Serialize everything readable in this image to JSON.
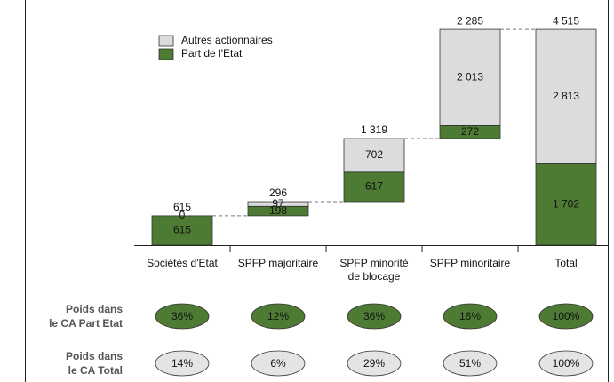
{
  "chart_data": {
    "type": "waterfall",
    "categories": [
      "Sociétés d'Etat",
      "SPFP majoritaire",
      "SPFP minorité\nde blocage",
      "SPFP minoritaire",
      "Total"
    ],
    "series": [
      {
        "name": "Autres actionnaires",
        "color": "#dcdcdc",
        "values": [
          0,
          97,
          702,
          2013,
          2813
        ],
        "value_labels": [
          "0",
          "97",
          "702",
          "2 013",
          "2 813"
        ]
      },
      {
        "name": "Part de l'Etat",
        "color": "#4e7b34",
        "values": [
          615,
          198,
          617,
          272,
          1702
        ],
        "value_labels": [
          "615",
          "198",
          "617",
          "272",
          "1 702"
        ]
      }
    ],
    "totals": [
      615,
      296,
      1319,
      2285,
      4515
    ],
    "total_labels": [
      "615",
      "296",
      "1 319",
      "2 285",
      "4 515"
    ],
    "ylim": [
      0,
      5000
    ],
    "rows": [
      {
        "label": "Poids dans\nle CA Part Etat",
        "color": "#4e7b34",
        "values": [
          36,
          12,
          36,
          16,
          100
        ],
        "value_labels": [
          "36%",
          "12%",
          "36%",
          "16%",
          "100%"
        ]
      },
      {
        "label": "Poids dans\nle CA Total",
        "color": "#e4e4e4",
        "values": [
          14,
          6,
          29,
          51,
          100
        ],
        "value_labels": [
          "14%",
          "6%",
          "29%",
          "51%",
          "100%"
        ]
      }
    ]
  }
}
